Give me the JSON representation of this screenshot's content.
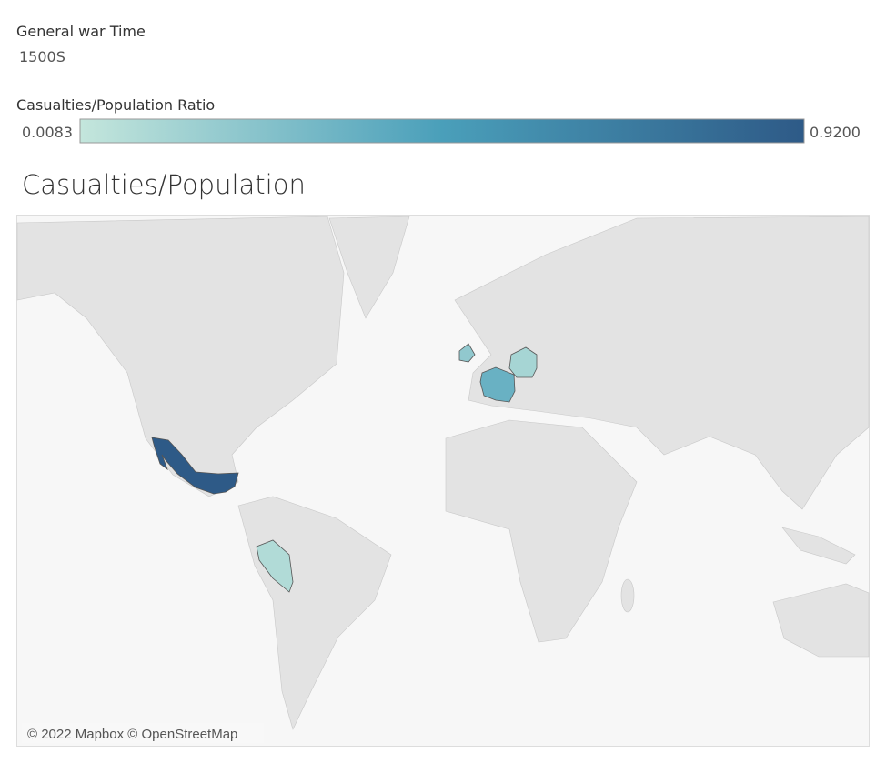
{
  "filter": {
    "label": "General war Time",
    "value": "1500S"
  },
  "legend": {
    "title": "Casualties/Population Ratio",
    "min": 0.0083,
    "max": {
      "value": 0.92,
      "label": "0.9200"
    },
    "colors": [
      "#c4e6dc",
      "#4a9fba",
      "#2e5a87"
    ]
  },
  "map": {
    "title": "Casualties/Population",
    "regions": [
      {
        "value": 0.92
      },
      {
        "value": 0.35
      },
      {
        "value": 0.12
      },
      {
        "value": 0.2
      },
      {
        "value": 0.08
      }
    ],
    "attribution": "© 2022 Mapbox © OpenStreetMap"
  }
}
